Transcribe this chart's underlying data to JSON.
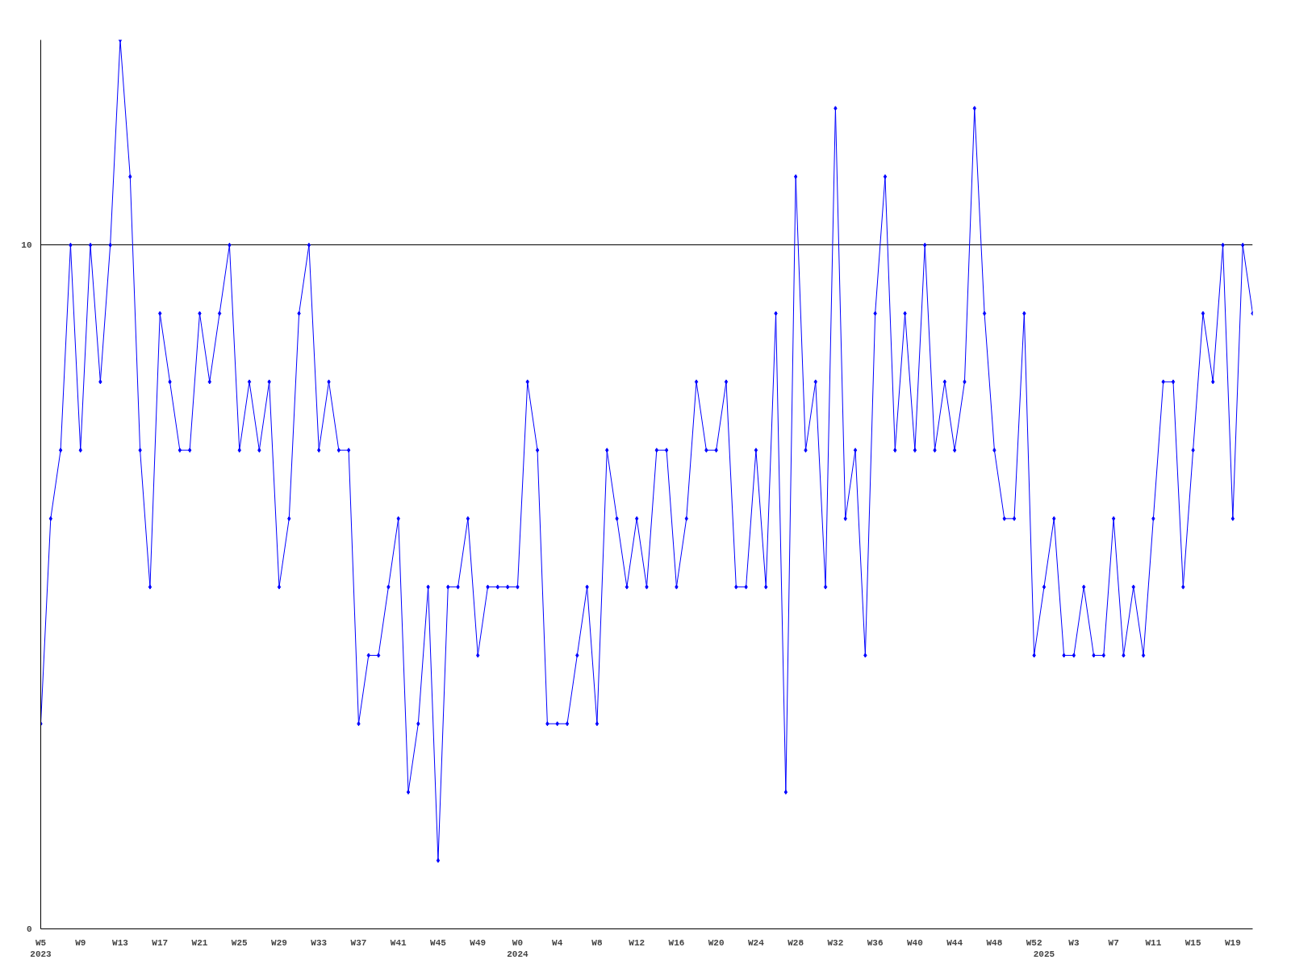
{
  "chart_data": {
    "type": "line",
    "categories": [
      "W5\n2023",
      null,
      null,
      null,
      "W9",
      null,
      null,
      null,
      "W13",
      null,
      null,
      null,
      "W17",
      null,
      null,
      null,
      "W21",
      null,
      null,
      null,
      "W25",
      null,
      null,
      null,
      "W29",
      null,
      null,
      null,
      "W33",
      null,
      null,
      null,
      "W37",
      null,
      null,
      null,
      "W41",
      null,
      null,
      null,
      "W45",
      null,
      null,
      null,
      "W49",
      null,
      null,
      null,
      "W0\n2024",
      null,
      null,
      null,
      "W4",
      null,
      null,
      null,
      "W8",
      null,
      null,
      null,
      "W12",
      null,
      null,
      null,
      "W16",
      null,
      null,
      null,
      "W20",
      null,
      null,
      null,
      "W24",
      null,
      null,
      null,
      "W28",
      null,
      null,
      null,
      "W32",
      null,
      null,
      null,
      "W36",
      null,
      null,
      null,
      "W40",
      null,
      null,
      null,
      "W44",
      null,
      null,
      null,
      "W48",
      null,
      null,
      null,
      "W52",
      "\n2025",
      null,
      null,
      "W3",
      null,
      null,
      null,
      "W7",
      null,
      null,
      null,
      "W11",
      null,
      null,
      null,
      "W15",
      null,
      null,
      null,
      "W19",
      null,
      null
    ],
    "series": [
      {
        "color": "#0000ff",
        "values": [
          3,
          6,
          7,
          10,
          7,
          10,
          8,
          10,
          13,
          11,
          7,
          5,
          9,
          8,
          7,
          7,
          9,
          8,
          9,
          10,
          7,
          8,
          7,
          8,
          5,
          6,
          9,
          10,
          7,
          8,
          7,
          7,
          3,
          4,
          4,
          5,
          6,
          2,
          3,
          5,
          1,
          5,
          5,
          6,
          4,
          5,
          5,
          5,
          5,
          8,
          7,
          3,
          3,
          3,
          4,
          5,
          3,
          7,
          6,
          5,
          6,
          5,
          7,
          7,
          5,
          6,
          8,
          7,
          7,
          8,
          5,
          5,
          7,
          5,
          9,
          2,
          11,
          7,
          8,
          5,
          12,
          6,
          7,
          4,
          9,
          11,
          7,
          9,
          7,
          10,
          7,
          8,
          7,
          8,
          12,
          9,
          7,
          6,
          6,
          9,
          4,
          5,
          6,
          4,
          4,
          5,
          4,
          4,
          6,
          4,
          5,
          4,
          6,
          8,
          8,
          5,
          7,
          9,
          8,
          10,
          6,
          10,
          9
        ]
      }
    ],
    "ylim": [
      0,
      13
    ],
    "yticks": [
      0,
      10
    ],
    "grid": "y",
    "marker": "diamond",
    "line_style": "solid"
  }
}
